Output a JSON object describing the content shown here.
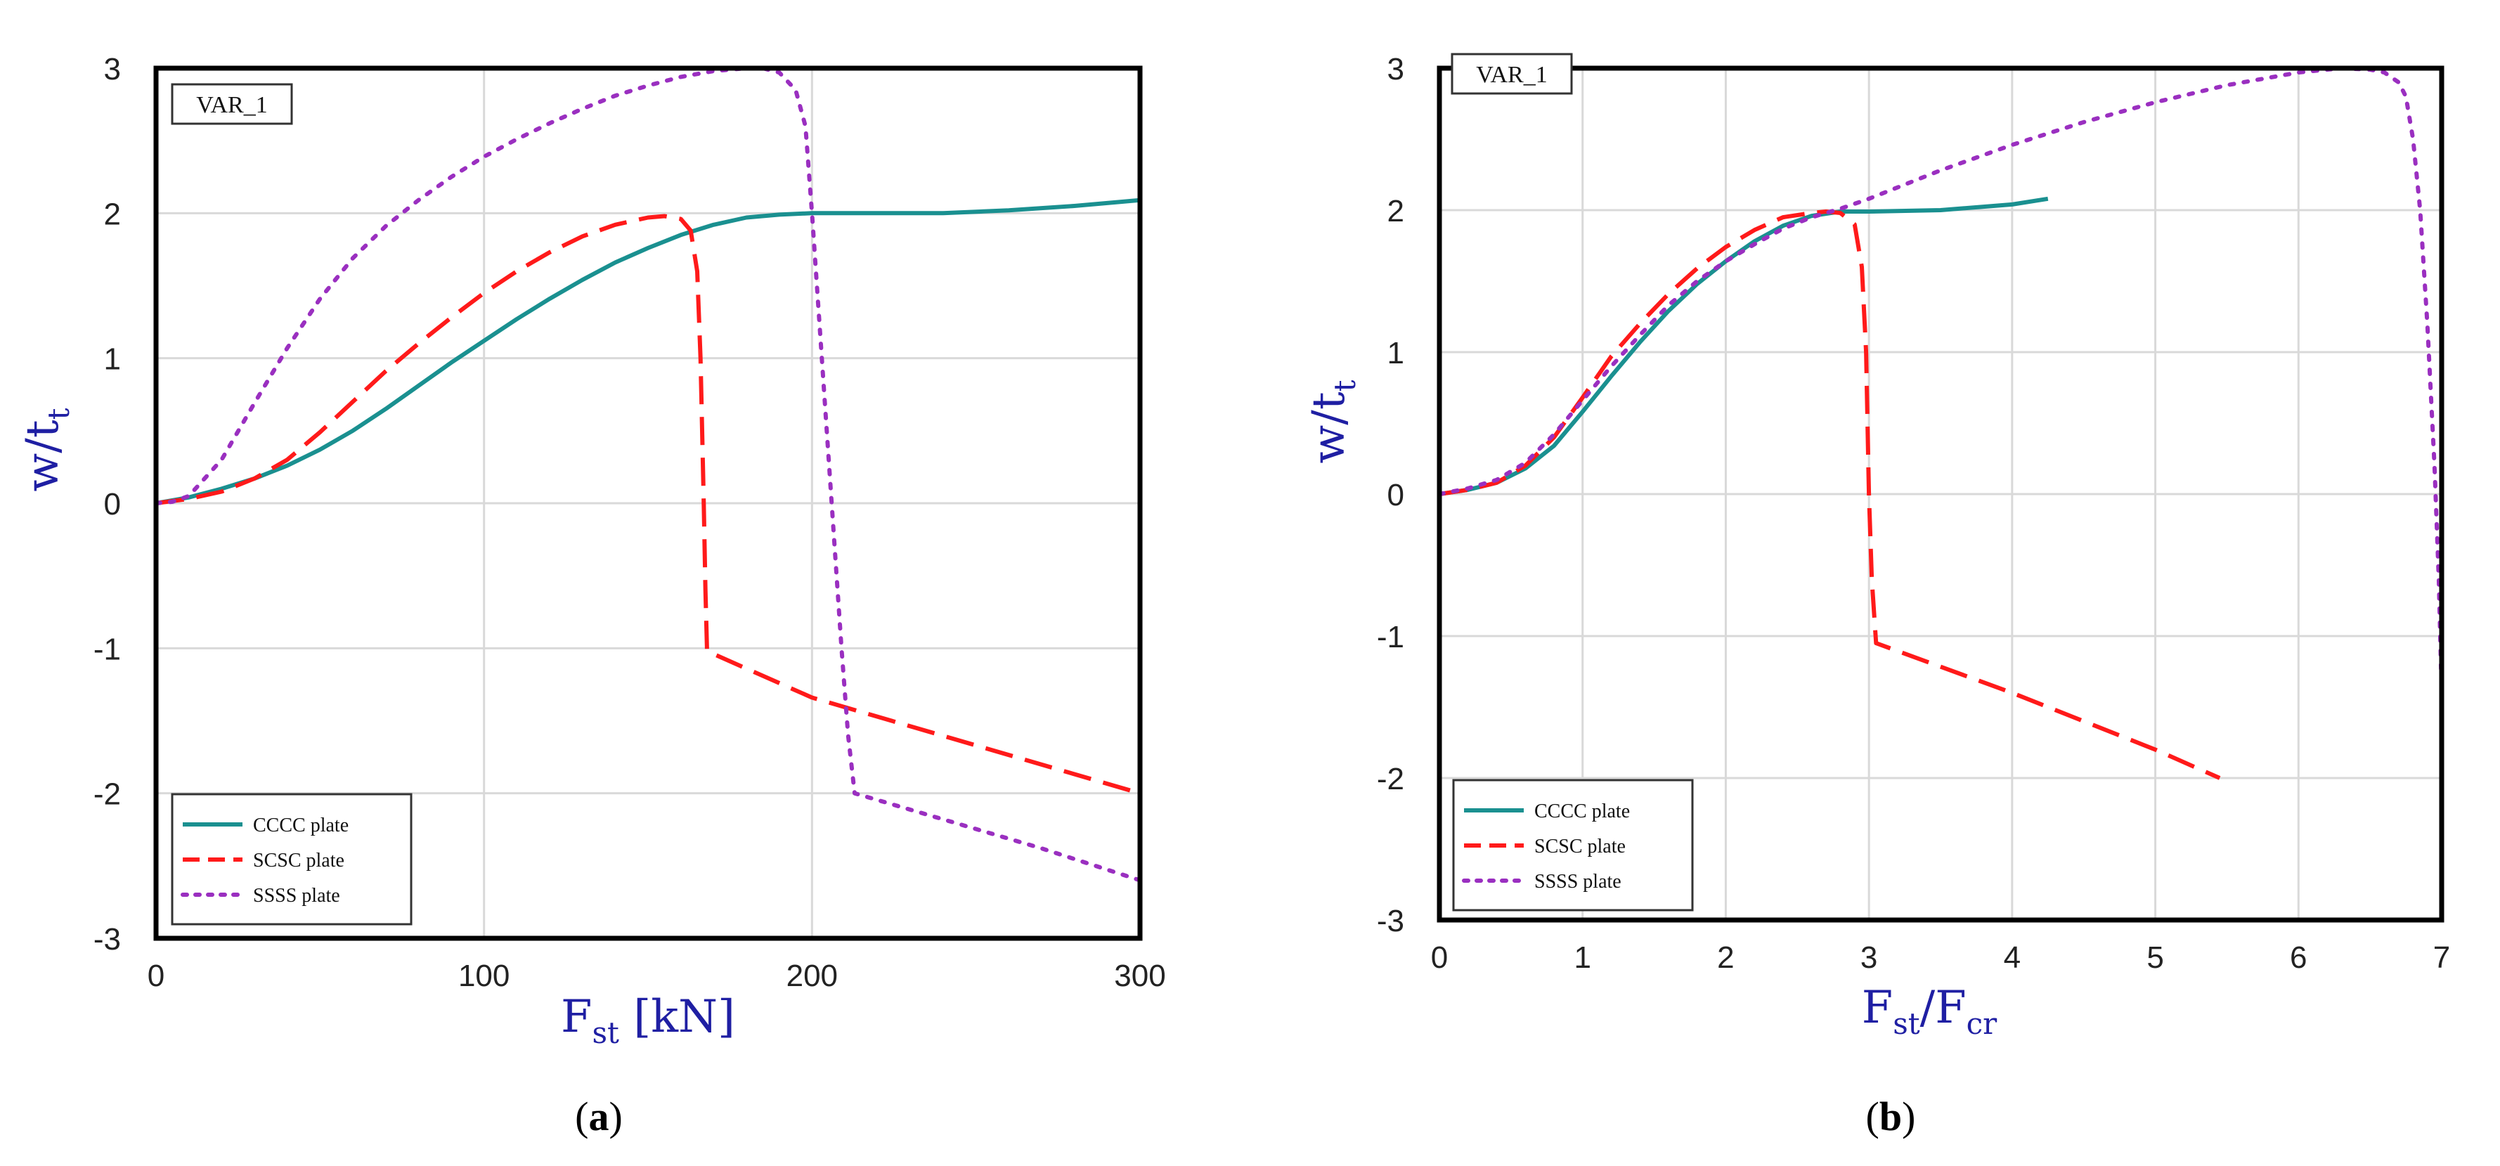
{
  "colors": {
    "cccc": "#1a9090",
    "scsc": "#ff1a1a",
    "ssss": "#9a2fc0",
    "axis_title": "#1f1fa3",
    "grid": "#d9d9d9"
  },
  "chart_data": [
    {
      "type": "line",
      "panel_label": "VAR_1",
      "caption_open": "(",
      "caption_letter": "a",
      "caption_close": ")",
      "xlabel": {
        "main": "F",
        "sub": "st",
        "suffix": " [kN]"
      },
      "ylabel": {
        "main": "w/t",
        "sub": "t"
      },
      "xlim": [
        0,
        300
      ],
      "ylim": [
        -3,
        3
      ],
      "xticks": [
        0,
        100,
        200,
        300
      ],
      "yticks": [
        -3,
        -2,
        -1,
        0,
        1,
        2,
        3
      ],
      "grid": true,
      "legend_position": "bottom-left",
      "series": [
        {
          "name": "CCCC plate",
          "style": "solid",
          "color": "#1a9090",
          "x": [
            0,
            10,
            20,
            30,
            40,
            50,
            60,
            70,
            80,
            90,
            100,
            110,
            120,
            130,
            140,
            150,
            160,
            170,
            180,
            190,
            200,
            220,
            240,
            260,
            280,
            300
          ],
          "y": [
            0,
            0.04,
            0.1,
            0.17,
            0.26,
            0.37,
            0.5,
            0.65,
            0.81,
            0.97,
            1.12,
            1.27,
            1.41,
            1.54,
            1.66,
            1.76,
            1.85,
            1.92,
            1.97,
            1.99,
            2.0,
            2.0,
            2.0,
            2.02,
            2.05,
            2.09
          ]
        },
        {
          "name": "SCSC plate",
          "style": "dashed",
          "color": "#ff1a1a",
          "x": [
            0,
            10,
            20,
            30,
            40,
            50,
            60,
            70,
            80,
            90,
            100,
            110,
            120,
            130,
            140,
            150,
            155,
            160,
            163,
            165,
            166,
            167,
            167.5,
            168,
            200,
            250,
            300
          ],
          "y": [
            0,
            0.03,
            0.08,
            0.17,
            0.3,
            0.49,
            0.7,
            0.91,
            1.1,
            1.28,
            1.45,
            1.6,
            1.73,
            1.84,
            1.92,
            1.97,
            1.98,
            1.96,
            1.88,
            1.6,
            1.0,
            0.0,
            -0.6,
            -1.02,
            -1.34,
            -1.67,
            -2.0
          ]
        },
        {
          "name": "SSSS plate",
          "style": "dotted",
          "color": "#9a2fc0",
          "x": [
            0,
            5,
            10,
            20,
            30,
            40,
            50,
            60,
            70,
            80,
            90,
            100,
            110,
            120,
            130,
            140,
            150,
            160,
            170,
            180,
            185,
            190,
            195,
            198,
            200,
            203,
            206,
            209,
            211,
            213,
            240,
            270,
            300
          ],
          "y": [
            0,
            0.01,
            0.05,
            0.3,
            0.69,
            1.07,
            1.41,
            1.69,
            1.91,
            2.09,
            2.25,
            2.39,
            2.51,
            2.62,
            2.72,
            2.81,
            2.88,
            2.94,
            2.98,
            3.0,
            3.0,
            2.97,
            2.85,
            2.6,
            2.0,
            1.0,
            0.0,
            -1.0,
            -1.6,
            -2.0,
            -2.18,
            -2.38,
            -2.6
          ]
        }
      ]
    },
    {
      "type": "line",
      "panel_label": "VAR_1",
      "caption_open": "(",
      "caption_letter": "b",
      "caption_close": ")",
      "xlabel": {
        "main": "F",
        "sub": "st",
        "mid": "/F",
        "sub2": "cr"
      },
      "ylabel": {
        "main": "w/t",
        "sub": "t"
      },
      "xlim": [
        0,
        7
      ],
      "ylim": [
        -3,
        3
      ],
      "xticks": [
        0,
        1,
        2,
        3,
        4,
        5,
        6,
        7
      ],
      "yticks": [
        -3,
        -2,
        -1,
        0,
        1,
        2,
        3
      ],
      "grid": true,
      "legend_position": "bottom-left",
      "series": [
        {
          "name": "CCCC plate",
          "style": "solid",
          "color": "#1a9090",
          "x": [
            0,
            0.2,
            0.4,
            0.6,
            0.8,
            1.0,
            1.2,
            1.4,
            1.6,
            1.8,
            2.0,
            2.2,
            2.4,
            2.6,
            2.8,
            3.0,
            3.5,
            4.0,
            4.25
          ],
          "y": [
            0,
            0.03,
            0.08,
            0.18,
            0.34,
            0.58,
            0.83,
            1.07,
            1.29,
            1.48,
            1.64,
            1.78,
            1.89,
            1.96,
            1.99,
            1.99,
            2.0,
            2.04,
            2.08
          ]
        },
        {
          "name": "SCSC plate",
          "style": "dashed",
          "color": "#ff1a1a",
          "x": [
            0,
            0.2,
            0.4,
            0.6,
            0.8,
            1.0,
            1.2,
            1.4,
            1.6,
            1.8,
            2.0,
            2.2,
            2.4,
            2.6,
            2.7,
            2.8,
            2.9,
            2.95,
            2.98,
            3.0,
            3.02,
            3.05,
            4.0,
            5.0,
            5.45
          ],
          "y": [
            0,
            0.03,
            0.08,
            0.2,
            0.4,
            0.68,
            0.97,
            1.2,
            1.41,
            1.59,
            1.74,
            1.86,
            1.95,
            1.98,
            1.99,
            1.98,
            1.9,
            1.6,
            1.0,
            0.0,
            -0.6,
            -1.05,
            -1.4,
            -1.8,
            -2.0
          ]
        },
        {
          "name": "SSSS plate",
          "style": "dotted",
          "color": "#9a2fc0",
          "x": [
            0,
            0.2,
            0.4,
            0.6,
            0.8,
            1.0,
            1.2,
            1.4,
            1.6,
            1.8,
            2.0,
            2.2,
            2.4,
            2.6,
            2.8,
            3.0,
            3.5,
            4.0,
            4.5,
            5.0,
            5.5,
            6.0,
            6.3,
            6.5,
            6.6,
            6.7,
            6.75,
            6.8,
            6.85,
            6.9,
            6.95,
            6.98,
            7.0
          ],
          "y": [
            0,
            0.04,
            0.1,
            0.22,
            0.42,
            0.66,
            0.9,
            1.12,
            1.33,
            1.5,
            1.64,
            1.76,
            1.87,
            1.95,
            2.01,
            2.08,
            2.28,
            2.46,
            2.62,
            2.76,
            2.88,
            2.97,
            3.0,
            2.99,
            2.97,
            2.9,
            2.8,
            2.5,
            2.0,
            1.2,
            0.2,
            -0.6,
            -1.4
          ]
        }
      ]
    }
  ]
}
